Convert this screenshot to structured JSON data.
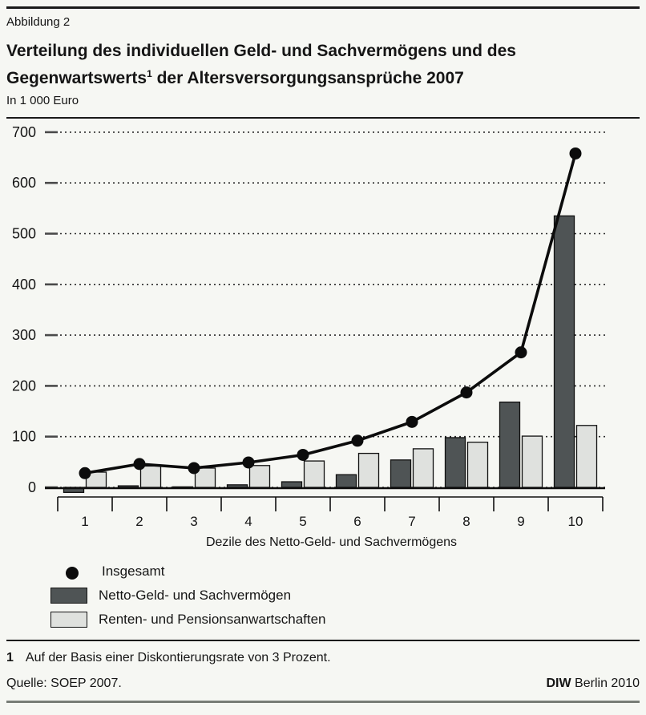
{
  "figure_label": "Abbildung 2",
  "title_line1": "Verteilung des individuellen Geld- und Sachvermögens und des",
  "title_line2_pre": "Gegenwartswerts",
  "title_sup": "1",
  "title_line2_post": " der Altersversorgungsansprüche 2007",
  "unit_label": "In 1 000 Euro",
  "chart_data": {
    "type": "bar",
    "subtype": "grouped bars with overlaid line series",
    "title": "Verteilung des individuellen Geld- und Sachvermögens und des Gegenwartswerts der Altersversorgungsansprüche 2007",
    "unit": "In 1 000 Euro",
    "categories": [
      "1",
      "2",
      "3",
      "4",
      "5",
      "6",
      "7",
      "8",
      "9",
      "10"
    ],
    "xlabel": "Dezile des Netto-Geld- und Sachvermögens",
    "ylabel": "",
    "ylim": [
      -20,
      700
    ],
    "yticks": [
      0,
      100,
      200,
      300,
      400,
      500,
      600,
      700
    ],
    "grid": "dotted horizontal gridlines at each ytick",
    "legend_position": "below chart, left aligned",
    "series": [
      {
        "name": "Insgesamt",
        "type": "line",
        "marker": "filled-circle",
        "color": "#0c0c0c",
        "values": [
          28,
          46,
          38,
          49,
          64,
          92,
          129,
          187,
          266,
          658
        ]
      },
      {
        "name": "Netto-Geld- und Sachvermögen",
        "type": "bar",
        "color": "#4f5455",
        "values": [
          -10,
          3,
          1,
          5,
          11,
          25,
          54,
          98,
          168,
          535
        ]
      },
      {
        "name": "Renten- und Pensionsanwartschaften",
        "type": "bar",
        "color": "#dfe1de",
        "values": [
          30,
          42,
          38,
          43,
          52,
          67,
          76,
          89,
          101,
          122
        ]
      }
    ]
  },
  "footnote": {
    "marker": "1",
    "text": "Auf der Basis einer Diskontierungsrate von 3 Prozent."
  },
  "source": "Quelle: SOEP 2007.",
  "credit_bold": "DIW",
  "credit_rest": " Berlin 2010",
  "colors": {
    "background": "#f6f7f3",
    "bar_dark": "#4f5455",
    "bar_light": "#dfe1de",
    "line": "#0c0c0c",
    "rule_dark": "#1a1a1a",
    "rule_bottom_gray": "#787d77"
  }
}
